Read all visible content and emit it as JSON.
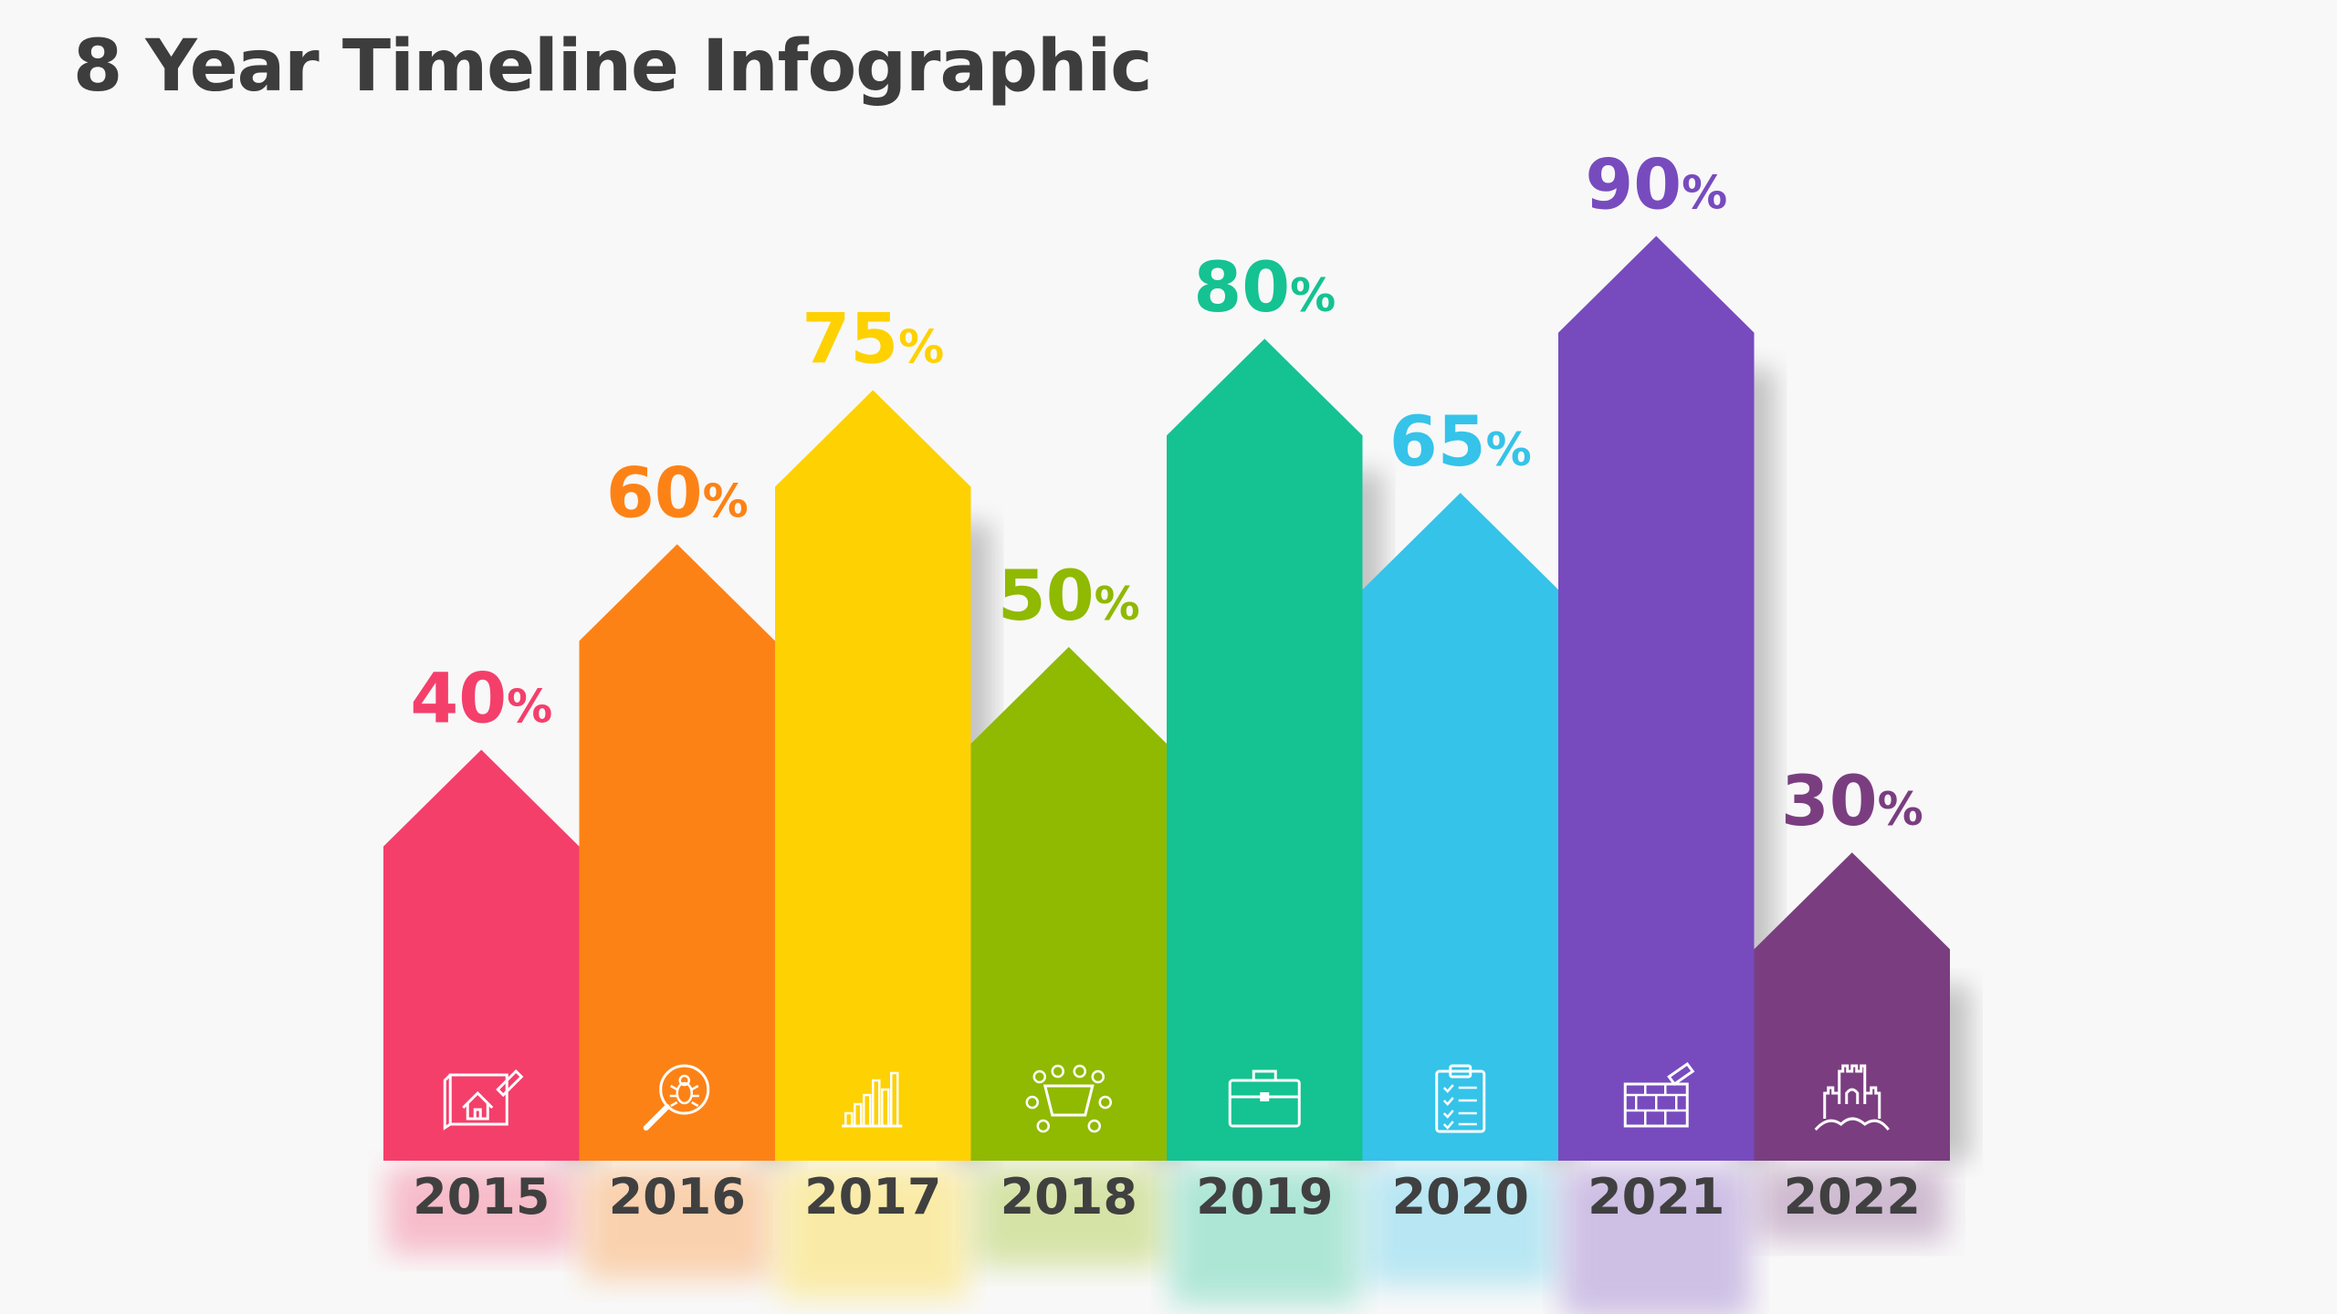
{
  "title": "8 Year Timeline Infographic",
  "chart_data": {
    "type": "bar",
    "categories": [
      "2015",
      "2016",
      "2017",
      "2018",
      "2019",
      "2020",
      "2021",
      "2022"
    ],
    "values": [
      40,
      60,
      75,
      50,
      80,
      65,
      90,
      30
    ],
    "value_suffix": "%",
    "colors": [
      "#f43f6b",
      "#fd8216",
      "#fed103",
      "#90b902",
      "#15c292",
      "#35c3e9",
      "#774bbe",
      "#7a3e80"
    ],
    "icons": [
      "house-blueprint-icon",
      "bug-search-icon",
      "bar-chart-icon",
      "meeting-table-icon",
      "briefcase-icon",
      "clipboard-checklist-icon",
      "brick-wall-icon",
      "castle-icon"
    ],
    "ylim": [
      0,
      100
    ]
  }
}
